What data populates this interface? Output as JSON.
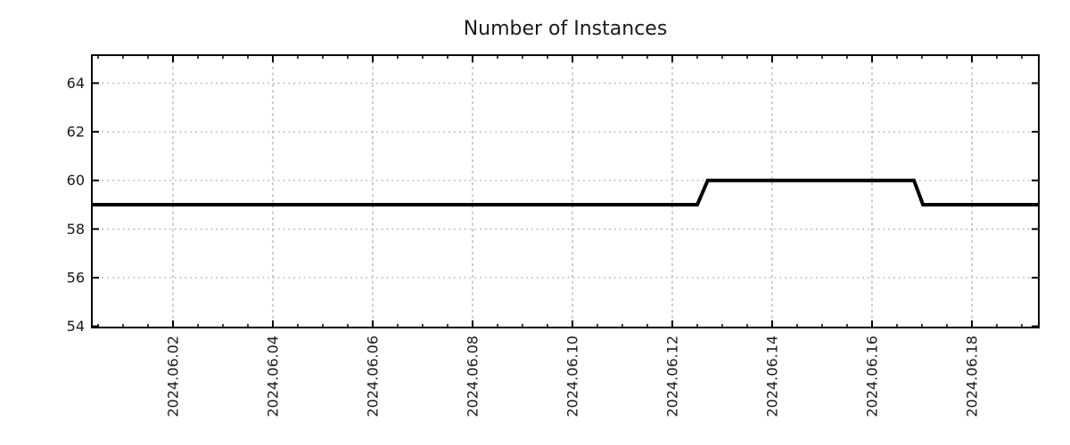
{
  "page": {
    "background": "#ffffff"
  },
  "chart_data": {
    "type": "line",
    "title": "Number of Instances",
    "x_axis": {
      "unit": "days, offset from 2024-06-01 00:00",
      "lim": [
        -0.625,
        18.34
      ],
      "major_ticks": [
        {
          "day": 1,
          "label": "2024.06.02"
        },
        {
          "day": 3,
          "label": "2024.06.04"
        },
        {
          "day": 5,
          "label": "2024.06.06"
        },
        {
          "day": 7,
          "label": "2024.06.08"
        },
        {
          "day": 9,
          "label": "2024.06.10"
        },
        {
          "day": 11,
          "label": "2024.06.12"
        },
        {
          "day": 13,
          "label": "2024.06.14"
        },
        {
          "day": 15,
          "label": "2024.06.16"
        },
        {
          "day": 17,
          "label": "2024.06.18"
        }
      ],
      "minor_tick_step_days": 0.5
    },
    "y_axis": {
      "lim": [
        53.95,
        65.15
      ],
      "ticks": [
        54,
        56,
        58,
        60,
        62,
        64
      ]
    },
    "series": [
      {
        "color": "#000000",
        "line_width": 4,
        "points": [
          {
            "day": -0.625,
            "value": 59
          },
          {
            "day": 11.5,
            "value": 59
          },
          {
            "day": 11.71,
            "value": 60
          },
          {
            "day": 15.84,
            "value": 60
          },
          {
            "day": 16.02,
            "value": 59
          },
          {
            "day": 18.34,
            "value": 59
          }
        ]
      }
    ],
    "grid": {
      "visible": true,
      "style": "dotted",
      "color": "#9a9a9a"
    },
    "legend": {
      "visible": false
    },
    "border_color": "#000000",
    "text_color": "#1a1a1a"
  }
}
